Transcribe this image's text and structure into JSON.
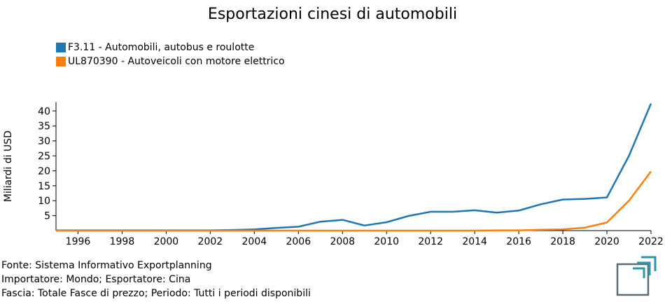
{
  "title": "Esportazioni cinesi di automobili",
  "legend": [
    {
      "label": "F3.11 - Automobili, autobus e roulotte",
      "color": "#1f77b4"
    },
    {
      "label": "UL870390 - Autoveicoli con motore elettrico",
      "color": "#ff7f0e"
    }
  ],
  "footer": {
    "line1": "Fonte: Sistema Informativo Exportplanning",
    "line2": "Importatore: Mondo; Esportatore: Cina",
    "line3": "Fascia: Totale Fasce di prezzo; Periodo: Tutti i periodi disponibili"
  },
  "chart_data": {
    "type": "line",
    "title": "Esportazioni cinesi di automobili",
    "xlabel": "",
    "ylabel": "Miliardi di USD",
    "xlim": [
      1995,
      2022
    ],
    "ylim": [
      0,
      43
    ],
    "xticks": [
      1996,
      1998,
      2000,
      2002,
      2004,
      2006,
      2008,
      2010,
      2012,
      2014,
      2016,
      2018,
      2020,
      2022
    ],
    "yticks": [
      5,
      10,
      15,
      20,
      25,
      30,
      35,
      40
    ],
    "grid": false,
    "legend_position": "top-left",
    "x": [
      1995,
      1996,
      1997,
      1998,
      1999,
      2000,
      2001,
      2002,
      2003,
      2004,
      2005,
      2006,
      2007,
      2008,
      2009,
      2010,
      2011,
      2012,
      2013,
      2014,
      2015,
      2016,
      2017,
      2018,
      2019,
      2020,
      2021,
      2022
    ],
    "series": [
      {
        "name": "F3.11 - Automobili, autobus e roulotte",
        "color": "#1f77b4",
        "values": [
          0.1,
          0.1,
          0.1,
          0.1,
          0.1,
          0.1,
          0.1,
          0.1,
          0.2,
          0.4,
          0.9,
          1.3,
          3.0,
          3.6,
          1.7,
          2.8,
          4.9,
          6.3,
          6.3,
          6.8,
          6.0,
          6.7,
          8.8,
          10.4,
          10.6,
          11.1,
          25.0,
          42.5
        ]
      },
      {
        "name": "UL870390 - Autoveicoli con motore elettrico",
        "color": "#ff7f0e",
        "values": [
          0,
          0,
          0,
          0,
          0,
          0,
          0,
          0,
          0,
          0,
          0,
          0,
          0,
          0,
          0,
          0,
          0,
          0,
          0,
          0,
          0.1,
          0.1,
          0.3,
          0.4,
          1.0,
          2.7,
          10.0,
          19.8
        ]
      }
    ]
  }
}
